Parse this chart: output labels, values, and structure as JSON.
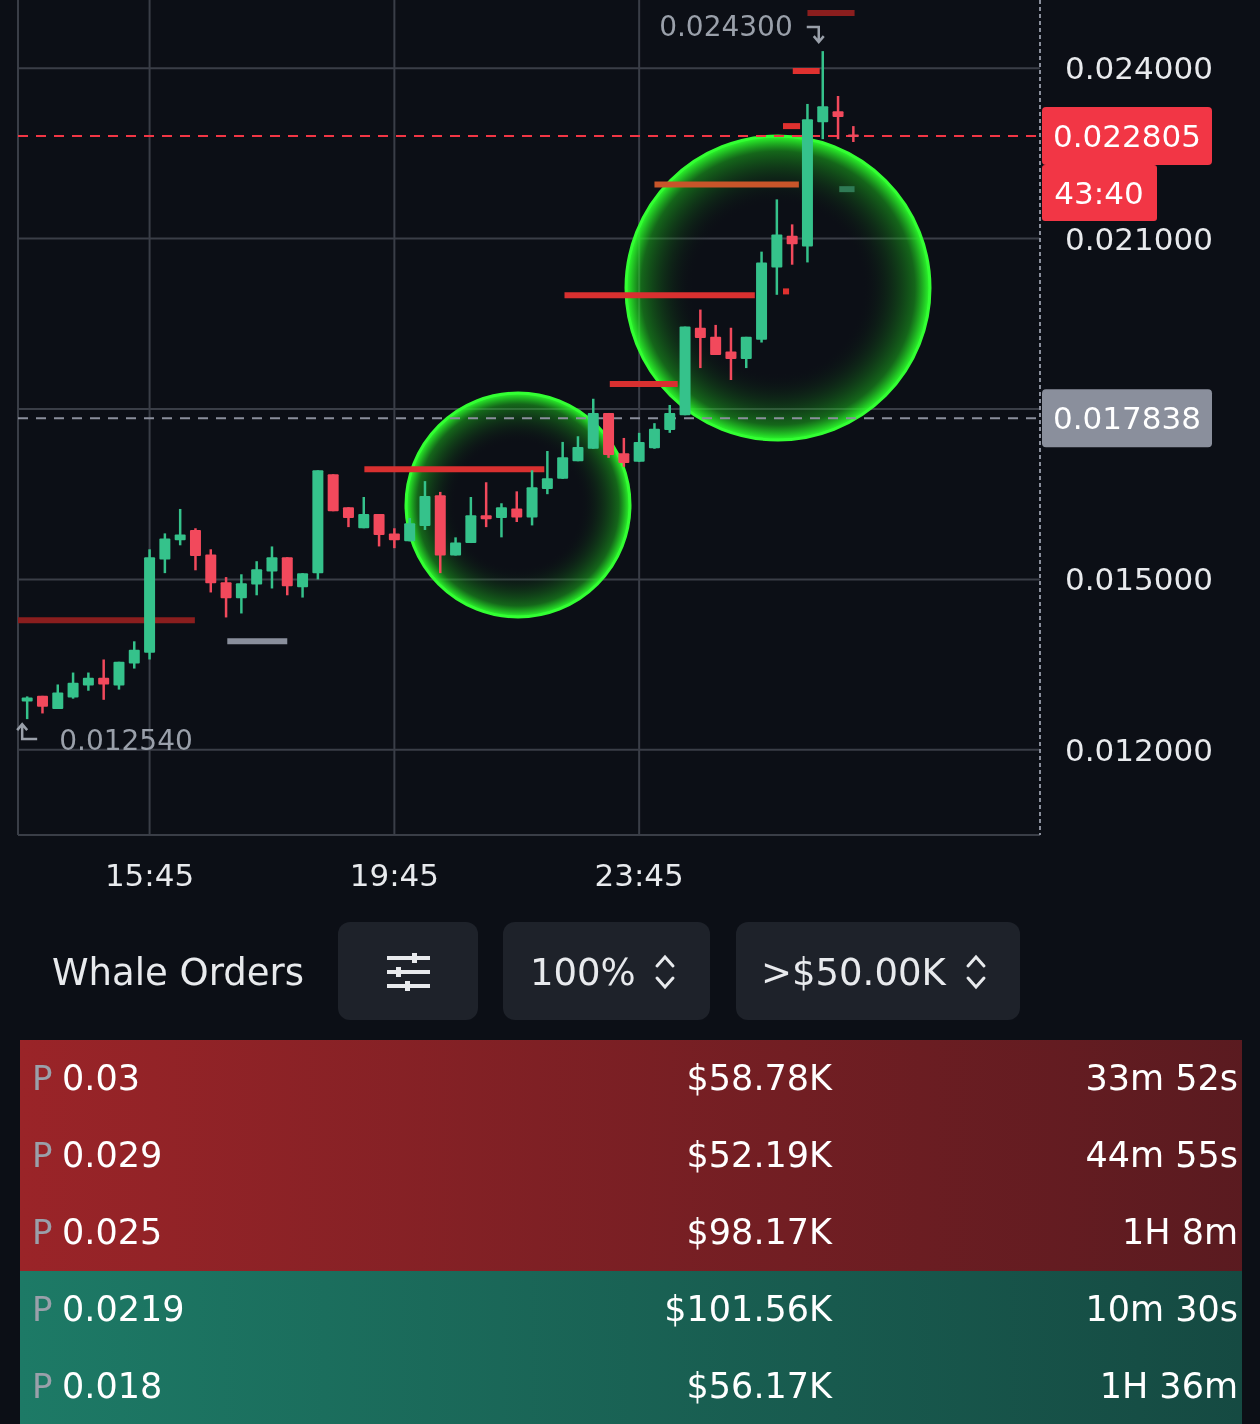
{
  "chart_data": [
    {
      "type": "candlestick",
      "x": [
        13.75,
        14,
        14.25,
        14.5,
        14.75,
        15,
        15.25,
        15.5,
        15.75,
        16,
        16.25,
        16.5,
        16.75,
        17,
        17.25,
        17.5,
        17.75,
        18,
        18.25,
        18.5,
        18.75,
        19,
        19.25,
        19.5,
        19.75,
        20,
        20.25,
        20.5,
        20.75,
        21,
        21.25,
        21.5,
        21.75,
        22,
        22.25,
        22.5,
        22.75,
        23,
        23.25,
        23.5,
        23.75,
        24,
        24.25,
        24.5,
        24.75,
        25,
        25.25,
        25.5,
        25.75,
        26,
        26.25,
        26.5,
        26.75,
        27,
        27.25
      ],
      "ohlc": [
        [
          0.01285,
          0.01294,
          0.01254,
          0.01292
        ],
        [
          0.01295,
          0.01295,
          0.01264,
          0.01276
        ],
        [
          0.01272,
          0.01315,
          0.01272,
          0.01301
        ],
        [
          0.01292,
          0.01336,
          0.0129,
          0.01318
        ],
        [
          0.01313,
          0.01336,
          0.01304,
          0.01327
        ],
        [
          0.01327,
          0.01359,
          0.01288,
          0.01315
        ],
        [
          0.01313,
          0.01355,
          0.01306,
          0.01355
        ],
        [
          0.01352,
          0.01391,
          0.01343,
          0.01376
        ],
        [
          0.01371,
          0.01553,
          0.01359,
          0.01539
        ],
        [
          0.01535,
          0.01581,
          0.01511,
          0.01572
        ],
        [
          0.01569,
          0.01624,
          0.0156,
          0.01579
        ],
        [
          0.01587,
          0.0159,
          0.01516,
          0.01541
        ],
        [
          0.01544,
          0.01553,
          0.01477,
          0.01493
        ],
        [
          0.01495,
          0.01504,
          0.01433,
          0.01467
        ],
        [
          0.01467,
          0.01509,
          0.0144,
          0.01493
        ],
        [
          0.01491,
          0.01532,
          0.01472,
          0.01518
        ],
        [
          0.01514,
          0.01558,
          0.01484,
          0.01539
        ],
        [
          0.01539,
          0.01539,
          0.01472,
          0.01488
        ],
        [
          0.01486,
          0.01511,
          0.01468,
          0.01511
        ],
        [
          0.01511,
          0.01692,
          0.015,
          0.01692
        ],
        [
          0.01685,
          0.01685,
          0.0162,
          0.0162
        ],
        [
          0.01627,
          0.01627,
          0.01592,
          0.01608
        ],
        [
          0.0159,
          0.01645,
          0.0159,
          0.01615
        ],
        [
          0.01615,
          0.01615,
          0.01558,
          0.01578
        ],
        [
          0.01581,
          0.0159,
          0.01555,
          0.01569
        ],
        [
          0.01567,
          0.01608,
          0.01567,
          0.01599
        ],
        [
          0.01594,
          0.01673,
          0.01587,
          0.01647
        ],
        [
          0.01648,
          0.01654,
          0.01511,
          0.01542
        ],
        [
          0.01542,
          0.01574,
          0.01542,
          0.01565
        ],
        [
          0.01564,
          0.01645,
          0.01564,
          0.01613
        ],
        [
          0.01613,
          0.01671,
          0.01592,
          0.01606
        ],
        [
          0.01608,
          0.01634,
          0.01574,
          0.01627
        ],
        [
          0.01625,
          0.01655,
          0.01601,
          0.01609
        ],
        [
          0.01609,
          0.01692,
          0.01595,
          0.01662
        ],
        [
          0.01659,
          0.01726,
          0.0165,
          0.01678
        ],
        [
          0.01677,
          0.01742,
          0.01677,
          0.01715
        ],
        [
          0.01708,
          0.01752,
          0.01708,
          0.01733
        ],
        [
          0.0173,
          0.01818,
          0.0173,
          0.01793
        ],
        [
          0.01793,
          0.01793,
          0.01714,
          0.01719
        ],
        [
          0.01722,
          0.01749,
          0.01698,
          0.01705
        ],
        [
          0.01707,
          0.01758,
          0.01707,
          0.01742
        ],
        [
          0.01731,
          0.01775,
          0.0173,
          0.01765
        ],
        [
          0.01763,
          0.01807,
          0.01758,
          0.01793
        ],
        [
          0.01789,
          0.01945,
          0.01789,
          0.01945
        ],
        [
          0.01943,
          0.01975,
          0.01872,
          0.01925
        ],
        [
          0.01927,
          0.01948,
          0.01895,
          0.01895
        ],
        [
          0.01901,
          0.01943,
          0.01851,
          0.01888
        ],
        [
          0.01888,
          0.01927,
          0.01872,
          0.01927
        ],
        [
          0.01922,
          0.02077,
          0.01917,
          0.02058
        ],
        [
          0.02049,
          0.02169,
          0.02001,
          0.02107
        ],
        [
          0.02105,
          0.02125,
          0.02054,
          0.0209
        ],
        [
          0.02086,
          0.02337,
          0.02058,
          0.0231
        ],
        [
          0.02305,
          0.0243,
          0.02275,
          0.02333
        ],
        [
          0.02324,
          0.02351,
          0.02275,
          0.02314
        ],
        [
          0.02283,
          0.02298,
          0.0227,
          0.022805
        ]
      ],
      "series": [
        {
          "type": "line",
          "x": [
            13.6,
            16.49
          ],
          "values": [
            0.01428,
            0.01428
          ],
          "color": "#8b1e1e"
        },
        {
          "type": "line",
          "x": [
            17.02,
            18.0
          ],
          "values": [
            0.01391,
            0.01391
          ],
          "color": "#8a8f9c"
        },
        {
          "type": "line",
          "x": [
            19.26,
            22.2
          ],
          "values": [
            0.01694,
            0.01694
          ],
          "color": "#d93030"
        },
        {
          "type": "line",
          "x": [
            22.53,
            25.64
          ],
          "values": [
            0.02,
            0.02
          ],
          "color": "#d93030"
        },
        {
          "type": "line",
          "x": [
            23.27,
            24.38
          ],
          "values": [
            0.01844,
            0.01844
          ],
          "color": "#d93030"
        },
        {
          "type": "line",
          "x": [
            24.0,
            26.36
          ],
          "values": [
            0.02195,
            0.02195
          ],
          "color": "#c8552a"
        },
        {
          "type": "line",
          "x": [
            26.1,
            26.2
          ],
          "values": [
            0.02007,
            0.02007
          ],
          "color": "#e0312f"
        },
        {
          "type": "line",
          "x": [
            26.1,
            26.38
          ],
          "values": [
            0.02298,
            0.02298
          ],
          "color": "#e0312f"
        },
        {
          "type": "line",
          "x": [
            26.26,
            26.7
          ],
          "values": [
            0.02395,
            0.02395
          ],
          "color": "#e0312f"
        },
        {
          "type": "line",
          "x": [
            26.5,
            27.27
          ],
          "values": [
            0.02497,
            0.02497
          ],
          "color": "#8b1e1e"
        },
        {
          "type": "line",
          "x": [
            27.02,
            27.27
          ],
          "values": [
            0.02187,
            0.02187
          ],
          "color": "#2f7a55"
        }
      ],
      "xlim": [
        13.6,
        30.3
      ],
      "ylim": [
        0.0105,
        0.0252
      ],
      "xticks": [
        {
          "value": 15.75,
          "label": "15:45"
        },
        {
          "value": 19.75,
          "label": "19:45"
        },
        {
          "value": 23.75,
          "label": "23:45"
        }
      ],
      "yticks": [
        {
          "value": 0.012,
          "label": "0.012000"
        },
        {
          "value": 0.015,
          "label": "0.015000"
        },
        {
          "value": 0.018,
          "label": null
        },
        {
          "value": 0.021,
          "label": "0.021000"
        },
        {
          "value": 0.024,
          "label": "0.024000"
        }
      ],
      "grid": true,
      "ref_lines": [
        {
          "axis": "y",
          "value": 0.022805,
          "label": "0.022805",
          "color": "#f23645",
          "line_style": "dashed"
        },
        {
          "axis": "y",
          "value": 0.017838,
          "label": "0.017838",
          "color": "#8a8f9c",
          "line_style": "dashed"
        }
      ],
      "annotations": [
        "0.024300",
        {
          "text": "0.012540",
          "x": 13.75,
          "y": 0.01254
        },
        "43:40"
      ]
    },
    {
      "type": "other",
      "title": "Whale Orders",
      "annotations": [
        "100%",
        ">$50.00K",
        "P",
        "0.03",
        "$58.78K",
        "33m 52s",
        "P",
        "0.029",
        "$52.19K",
        "44m 55s",
        "P",
        "0.025",
        "$98.17K",
        "1H 8m",
        "P",
        "0.0219",
        "$101.56K",
        "10m 30s",
        "P",
        "0.018",
        "$56.17K",
        "1H 36m"
      ],
      "colors": [
        "#9a2428",
        "#9a2428",
        "#9a2428",
        "#1d7a66",
        "#1d7a66"
      ]
    }
  ]
}
